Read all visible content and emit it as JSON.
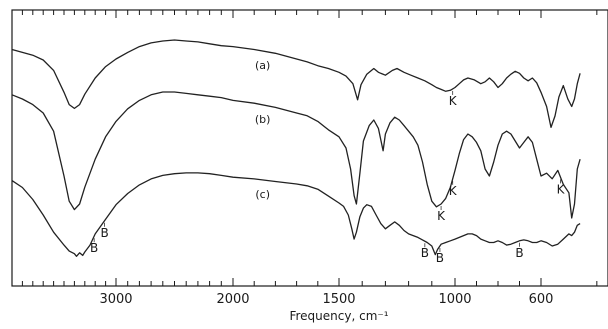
{
  "chart_data": {
    "type": "line",
    "xlabel": "Frequency, cm⁻¹",
    "x_ticks": [
      3000,
      2000,
      1500,
      1000,
      600
    ],
    "x_tick_labels": [
      "3000",
      "2000",
      "1500",
      "1000",
      "600"
    ],
    "grid": false,
    "series": [
      {
        "name": "(a)",
        "points": [
          [
            4000,
            0.1
          ],
          [
            3900,
            0.13
          ],
          [
            3800,
            0.16
          ],
          [
            3700,
            0.21
          ],
          [
            3600,
            0.32
          ],
          [
            3500,
            0.55
          ],
          [
            3450,
            0.68
          ],
          [
            3400,
            0.72
          ],
          [
            3350,
            0.68
          ],
          [
            3300,
            0.57
          ],
          [
            3200,
            0.4
          ],
          [
            3100,
            0.28
          ],
          [
            3000,
            0.2
          ],
          [
            2900,
            0.13
          ],
          [
            2800,
            0.07
          ],
          [
            2700,
            0.03
          ],
          [
            2600,
            0.01
          ],
          [
            2500,
            0.0
          ],
          [
            2400,
            0.01
          ],
          [
            2300,
            0.02
          ],
          [
            2200,
            0.04
          ],
          [
            2100,
            0.06
          ],
          [
            2000,
            0.07
          ],
          [
            1900,
            0.1
          ],
          [
            1800,
            0.14
          ],
          [
            1700,
            0.2
          ],
          [
            1650,
            0.23
          ],
          [
            1600,
            0.27
          ],
          [
            1550,
            0.3
          ],
          [
            1500,
            0.34
          ],
          [
            1470,
            0.38
          ],
          [
            1440,
            0.46
          ],
          [
            1420,
            0.63
          ],
          [
            1405,
            0.47
          ],
          [
            1380,
            0.36
          ],
          [
            1350,
            0.3
          ],
          [
            1330,
            0.34
          ],
          [
            1300,
            0.37
          ],
          [
            1270,
            0.32
          ],
          [
            1250,
            0.3
          ],
          [
            1220,
            0.34
          ],
          [
            1190,
            0.37
          ],
          [
            1160,
            0.4
          ],
          [
            1130,
            0.43
          ],
          [
            1100,
            0.47
          ],
          [
            1080,
            0.5
          ],
          [
            1060,
            0.52
          ],
          [
            1040,
            0.54
          ],
          [
            1020,
            0.53
          ],
          [
            1000,
            0.5
          ],
          [
            980,
            0.46
          ],
          [
            960,
            0.42
          ],
          [
            940,
            0.4
          ],
          [
            910,
            0.42
          ],
          [
            880,
            0.46
          ],
          [
            860,
            0.44
          ],
          [
            840,
            0.4
          ],
          [
            820,
            0.44
          ],
          [
            800,
            0.5
          ],
          [
            780,
            0.46
          ],
          [
            760,
            0.4
          ],
          [
            740,
            0.36
          ],
          [
            720,
            0.33
          ],
          [
            700,
            0.35
          ],
          [
            680,
            0.4
          ],
          [
            660,
            0.43
          ],
          [
            640,
            0.4
          ],
          [
            620,
            0.45
          ],
          [
            600,
            0.55
          ],
          [
            590,
            0.7
          ],
          [
            582,
            0.92
          ],
          [
            575,
            0.8
          ],
          [
            568,
            0.6
          ],
          [
            560,
            0.48
          ],
          [
            552,
            0.62
          ],
          [
            545,
            0.7
          ],
          [
            540,
            0.62
          ],
          [
            535,
            0.46
          ],
          [
            530,
            0.35
          ]
        ]
      },
      {
        "name": "(b)",
        "points": [
          [
            4000,
            0.02
          ],
          [
            3900,
            0.05
          ],
          [
            3800,
            0.09
          ],
          [
            3700,
            0.15
          ],
          [
            3600,
            0.28
          ],
          [
            3500,
            0.6
          ],
          [
            3450,
            0.78
          ],
          [
            3400,
            0.84
          ],
          [
            3350,
            0.8
          ],
          [
            3300,
            0.68
          ],
          [
            3200,
            0.48
          ],
          [
            3100,
            0.32
          ],
          [
            3000,
            0.21
          ],
          [
            2900,
            0.12
          ],
          [
            2800,
            0.06
          ],
          [
            2700,
            0.02
          ],
          [
            2600,
            0.0
          ],
          [
            2500,
            0.0
          ],
          [
            2400,
            0.01
          ],
          [
            2300,
            0.02
          ],
          [
            2200,
            0.03
          ],
          [
            2100,
            0.04
          ],
          [
            2000,
            0.06
          ],
          [
            1900,
            0.08
          ],
          [
            1800,
            0.11
          ],
          [
            1700,
            0.15
          ],
          [
            1650,
            0.17
          ],
          [
            1600,
            0.21
          ],
          [
            1550,
            0.27
          ],
          [
            1500,
            0.32
          ],
          [
            1470,
            0.4
          ],
          [
            1450,
            0.55
          ],
          [
            1435,
            0.74
          ],
          [
            1425,
            0.8
          ],
          [
            1410,
            0.58
          ],
          [
            1395,
            0.35
          ],
          [
            1370,
            0.24
          ],
          [
            1350,
            0.2
          ],
          [
            1330,
            0.26
          ],
          [
            1310,
            0.42
          ],
          [
            1300,
            0.3
          ],
          [
            1280,
            0.22
          ],
          [
            1260,
            0.18
          ],
          [
            1240,
            0.2
          ],
          [
            1220,
            0.24
          ],
          [
            1200,
            0.28
          ],
          [
            1180,
            0.32
          ],
          [
            1160,
            0.38
          ],
          [
            1140,
            0.5
          ],
          [
            1120,
            0.66
          ],
          [
            1100,
            0.78
          ],
          [
            1080,
            0.82
          ],
          [
            1060,
            0.8
          ],
          [
            1040,
            0.76
          ],
          [
            1020,
            0.68
          ],
          [
            1000,
            0.56
          ],
          [
            980,
            0.44
          ],
          [
            960,
            0.34
          ],
          [
            940,
            0.3
          ],
          [
            920,
            0.32
          ],
          [
            900,
            0.36
          ],
          [
            880,
            0.42
          ],
          [
            860,
            0.55
          ],
          [
            840,
            0.6
          ],
          [
            820,
            0.5
          ],
          [
            800,
            0.38
          ],
          [
            780,
            0.3
          ],
          [
            760,
            0.28
          ],
          [
            740,
            0.3
          ],
          [
            720,
            0.35
          ],
          [
            700,
            0.4
          ],
          [
            680,
            0.36
          ],
          [
            660,
            0.32
          ],
          [
            640,
            0.36
          ],
          [
            620,
            0.48
          ],
          [
            600,
            0.6
          ],
          [
            590,
            0.58
          ],
          [
            580,
            0.62
          ],
          [
            570,
            0.56
          ],
          [
            560,
            0.66
          ],
          [
            550,
            0.72
          ],
          [
            545,
            0.9
          ],
          [
            540,
            0.8
          ],
          [
            535,
            0.55
          ],
          [
            530,
            0.48
          ]
        ]
      },
      {
        "name": "(c)",
        "points": [
          [
            4000,
            0.1
          ],
          [
            3900,
            0.18
          ],
          [
            3800,
            0.32
          ],
          [
            3700,
            0.5
          ],
          [
            3600,
            0.7
          ],
          [
            3500,
            0.85
          ],
          [
            3450,
            0.92
          ],
          [
            3400,
            0.95
          ],
          [
            3380,
            0.98
          ],
          [
            3350,
            0.94
          ],
          [
            3320,
            0.97
          ],
          [
            3300,
            0.93
          ],
          [
            3250,
            0.85
          ],
          [
            3200,
            0.72
          ],
          [
            3100,
            0.55
          ],
          [
            3000,
            0.38
          ],
          [
            2900,
            0.25
          ],
          [
            2800,
            0.15
          ],
          [
            2700,
            0.08
          ],
          [
            2600,
            0.04
          ],
          [
            2500,
            0.02
          ],
          [
            2400,
            0.01
          ],
          [
            2300,
            0.01
          ],
          [
            2200,
            0.02
          ],
          [
            2100,
            0.04
          ],
          [
            2000,
            0.06
          ],
          [
            1900,
            0.08
          ],
          [
            1800,
            0.11
          ],
          [
            1700,
            0.14
          ],
          [
            1650,
            0.16
          ],
          [
            1600,
            0.2
          ],
          [
            1550,
            0.28
          ],
          [
            1500,
            0.36
          ],
          [
            1480,
            0.4
          ],
          [
            1460,
            0.5
          ],
          [
            1445,
            0.66
          ],
          [
            1435,
            0.78
          ],
          [
            1425,
            0.7
          ],
          [
            1410,
            0.52
          ],
          [
            1395,
            0.42
          ],
          [
            1380,
            0.38
          ],
          [
            1360,
            0.4
          ],
          [
            1340,
            0.5
          ],
          [
            1320,
            0.6
          ],
          [
            1300,
            0.66
          ],
          [
            1280,
            0.62
          ],
          [
            1260,
            0.58
          ],
          [
            1240,
            0.62
          ],
          [
            1220,
            0.68
          ],
          [
            1200,
            0.72
          ],
          [
            1180,
            0.74
          ],
          [
            1160,
            0.76
          ],
          [
            1140,
            0.79
          ],
          [
            1120,
            0.82
          ],
          [
            1100,
            0.86
          ],
          [
            1085,
            0.96
          ],
          [
            1075,
            0.9
          ],
          [
            1060,
            0.84
          ],
          [
            1040,
            0.82
          ],
          [
            1020,
            0.8
          ],
          [
            1000,
            0.78
          ],
          [
            980,
            0.76
          ],
          [
            960,
            0.74
          ],
          [
            940,
            0.72
          ],
          [
            920,
            0.72
          ],
          [
            900,
            0.74
          ],
          [
            880,
            0.78
          ],
          [
            860,
            0.8
          ],
          [
            840,
            0.82
          ],
          [
            820,
            0.82
          ],
          [
            800,
            0.8
          ],
          [
            780,
            0.82
          ],
          [
            760,
            0.85
          ],
          [
            740,
            0.84
          ],
          [
            720,
            0.82
          ],
          [
            700,
            0.8
          ],
          [
            680,
            0.79
          ],
          [
            660,
            0.8
          ],
          [
            640,
            0.82
          ],
          [
            620,
            0.82
          ],
          [
            600,
            0.8
          ],
          [
            590,
            0.82
          ],
          [
            580,
            0.86
          ],
          [
            570,
            0.84
          ],
          [
            560,
            0.78
          ],
          [
            550,
            0.72
          ],
          [
            545,
            0.74
          ],
          [
            540,
            0.7
          ],
          [
            535,
            0.62
          ],
          [
            530,
            0.6
          ]
        ]
      }
    ],
    "annotations": [
      {
        "text": "(a)",
        "series": "(a)",
        "x": 1860,
        "kind": "label"
      },
      {
        "text": "(b)",
        "series": "(b)",
        "x": 1860,
        "kind": "label"
      },
      {
        "text": "(c)",
        "series": "(c)",
        "x": 1860,
        "kind": "label"
      },
      {
        "text": "K",
        "series": "(a)",
        "x": 1010,
        "kind": "mark"
      },
      {
        "text": "K",
        "series": "(b)",
        "x": 1060,
        "kind": "mark"
      },
      {
        "text": "K",
        "series": "(b)",
        "x": 1010,
        "kind": "mark"
      },
      {
        "text": "K",
        "series": "(b)",
        "x": 565,
        "kind": "mark"
      },
      {
        "text": "B",
        "series": "(c)",
        "x": 3210,
        "kind": "mark"
      },
      {
        "text": "B",
        "series": "(c)",
        "x": 3110,
        "kind": "mark"
      },
      {
        "text": "B",
        "series": "(c)",
        "x": 1130,
        "kind": "mark"
      },
      {
        "text": "B",
        "series": "(c)",
        "x": 1065,
        "kind": "mark"
      },
      {
        "text": "B",
        "series": "(c)",
        "x": 700,
        "kind": "mark"
      }
    ]
  }
}
